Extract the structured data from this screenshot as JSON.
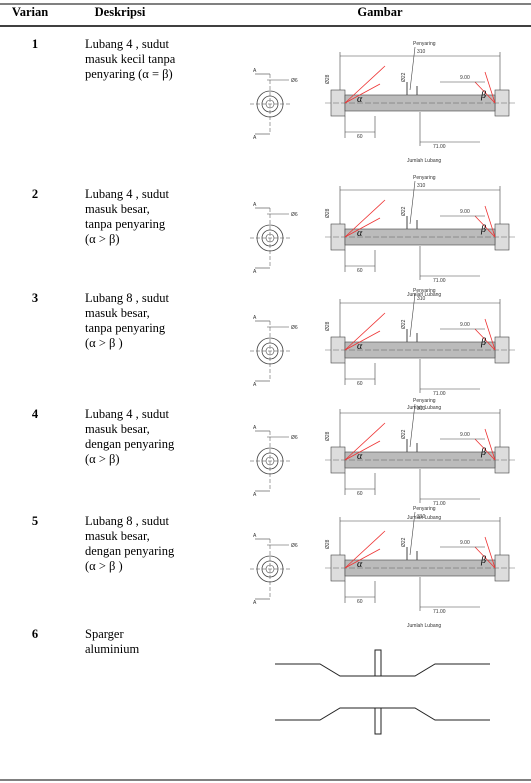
{
  "table": {
    "headers": [
      "Varian",
      "Deskripsi",
      "Gambar"
    ],
    "rows": [
      {
        "varian": "1",
        "description": [
          "Lubang 4 , sudut",
          "masuk kecil tanpa",
          "penyaring (α = β)"
        ],
        "drawing": {
          "callout": "Penyaring",
          "length": "310",
          "outer": "Ø28",
          "inner": "Ø22",
          "hole": "Ø6",
          "spacing": "9.00",
          "offset": "71.00",
          "start": "60",
          "note": "Jumlah Lubang",
          "section": "A",
          "alpha": "α",
          "beta": "β"
        }
      },
      {
        "varian": "2",
        "description": [
          "Lubang 4 , sudut",
          "masuk besar,",
          "tanpa penyaring",
          "(α > β)"
        ],
        "drawing": {
          "callout": "Penyaring",
          "length": "310",
          "outer": "Ø28",
          "inner": "Ø22",
          "hole": "Ø6",
          "spacing": "9.00",
          "offset": "71.00",
          "start": "60",
          "note": "Jumlah Lubang",
          "section": "A",
          "alpha": "α",
          "beta": "β"
        }
      },
      {
        "varian": "3",
        "description": [
          "Lubang 8 , sudut",
          "masuk besar,",
          "tanpa penyaring",
          "(α > β )"
        ],
        "drawing": {
          "callout": "Penyaring",
          "length": "310",
          "outer": "Ø28",
          "inner": "Ø22",
          "hole": "Ø6",
          "spacing": "9.00",
          "offset": "71.00",
          "start": "60",
          "note": "Jumlah Lubang",
          "section": "A",
          "alpha": "α",
          "beta": "β"
        }
      },
      {
        "varian": "4",
        "description": [
          " Lubang 4 , sudut",
          "masuk besar,",
          "dengan penyaring",
          "(α > β)"
        ],
        "drawing": {
          "callout": "Penyaring",
          "length": "310",
          "outer": "Ø28",
          "inner": "Ø22",
          "hole": "Ø6",
          "spacing": "9.00",
          "offset": "71.00",
          "start": "60",
          "note": "Jumlah Lubang",
          "section": "A",
          "alpha": "α",
          "beta": "β"
        }
      },
      {
        "varian": "5",
        "description": [
          "Lubang 8 , sudut",
          "masuk besar,",
          "dengan penyaring",
          "(α > β )"
        ],
        "drawing": {
          "callout": "Penyaring",
          "length": "310",
          "outer": "Ø28",
          "inner": "Ø22",
          "hole": "Ø6",
          "spacing": "9.00",
          "offset": "71.00",
          "start": "60",
          "note": "Jumlah Lubang",
          "section": "A",
          "alpha": "α",
          "beta": "β"
        }
      },
      {
        "varian": "6",
        "description": [
          "Sparger",
          "aluminium"
        ]
      }
    ]
  }
}
